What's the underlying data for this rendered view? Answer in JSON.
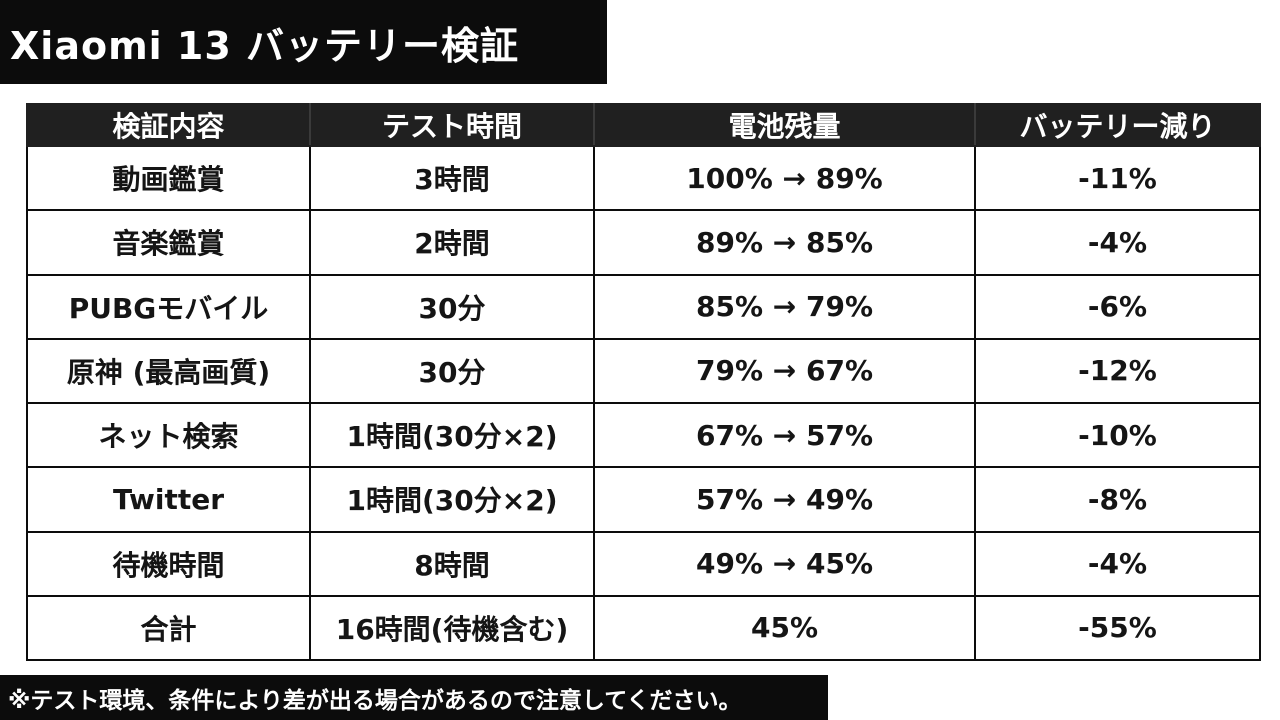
{
  "title": "Xiaomi 13 バッテリー検証",
  "table": {
    "headers": [
      "検証内容",
      "テスト時間",
      "電池残量",
      "バッテリー減り"
    ],
    "rows": [
      [
        "動画鑑賞",
        "3時間",
        "100% → 89%",
        "-11%"
      ],
      [
        "音楽鑑賞",
        "2時間",
        "89% → 85%",
        "-4%"
      ],
      [
        "PUBGモバイル",
        "30分",
        "85% → 79%",
        "-6%"
      ],
      [
        "原神 (最高画質)",
        "30分",
        "79% → 67%",
        "-12%"
      ],
      [
        "ネット検索",
        "1時間(30分×2)",
        "67% → 57%",
        "-10%"
      ],
      [
        "Twitter",
        "1時間(30分×2)",
        "57% → 49%",
        "-8%"
      ],
      [
        "待機時間",
        "8時間",
        "49% → 45%",
        "-4%"
      ],
      [
        "合計",
        "16時間(待機含む)",
        "45%",
        "-55%"
      ]
    ]
  },
  "footer_note": "※テスト環境、条件により差が出る場合があるので注意してください。",
  "colors": {
    "banner": "#0c0c0c",
    "header_bg": "#202020",
    "text": "#151515",
    "background": "#ffffff"
  }
}
